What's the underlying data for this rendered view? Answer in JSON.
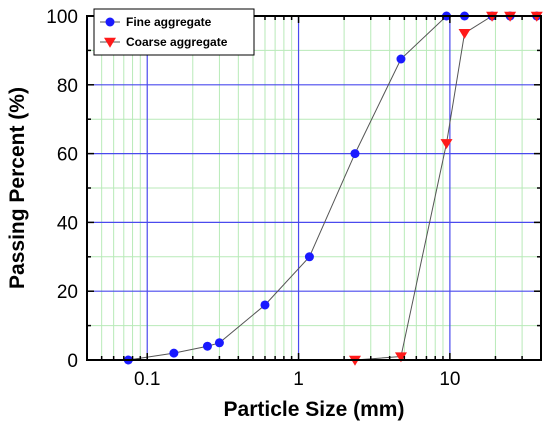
{
  "chart_data": {
    "type": "scatter",
    "xlabel": "Particle Size (mm)",
    "ylabel": "Passing Percent (%)",
    "xscale": "log",
    "xlim": [
      0.04,
      40
    ],
    "ylim": [
      0,
      100
    ],
    "x_ticks": [
      {
        "value": 0.1,
        "label": "0.1"
      },
      {
        "value": 1,
        "label": "1"
      },
      {
        "value": 10,
        "label": "10"
      }
    ],
    "y_ticks": [
      {
        "value": 0,
        "label": "0"
      },
      {
        "value": 20,
        "label": "20"
      },
      {
        "value": 40,
        "label": "40"
      },
      {
        "value": 60,
        "label": "60"
      },
      {
        "value": 80,
        "label": "80"
      },
      {
        "value": 100,
        "label": "100"
      }
    ],
    "grid": true,
    "legend_position": "top-left",
    "series": [
      {
        "name": "Fine aggregate",
        "marker": "circle",
        "color": "#1a1aff",
        "points": [
          {
            "x": 0.075,
            "y": 0
          },
          {
            "x": 0.15,
            "y": 2
          },
          {
            "x": 0.25,
            "y": 4
          },
          {
            "x": 0.3,
            "y": 5
          },
          {
            "x": 0.6,
            "y": 16
          },
          {
            "x": 1.18,
            "y": 30
          },
          {
            "x": 2.36,
            "y": 60
          },
          {
            "x": 4.75,
            "y": 87.5
          },
          {
            "x": 9.5,
            "y": 100
          },
          {
            "x": 12.5,
            "y": 100
          },
          {
            "x": 19,
            "y": 100
          },
          {
            "x": 25,
            "y": 100
          },
          {
            "x": 37.5,
            "y": 100
          }
        ]
      },
      {
        "name": "Coarse aggregate",
        "marker": "triangle-down",
        "color": "#ff1a1a",
        "points": [
          {
            "x": 2.36,
            "y": 0
          },
          {
            "x": 4.75,
            "y": 1
          },
          {
            "x": 9.5,
            "y": 63
          },
          {
            "x": 12.5,
            "y": 95
          },
          {
            "x": 19,
            "y": 100
          },
          {
            "x": 25,
            "y": 100
          },
          {
            "x": 37.5,
            "y": 100
          }
        ]
      }
    ]
  },
  "colors": {
    "major_grid": "#4a4aee",
    "minor_grid": "#b8eab8",
    "line": "#555555"
  }
}
